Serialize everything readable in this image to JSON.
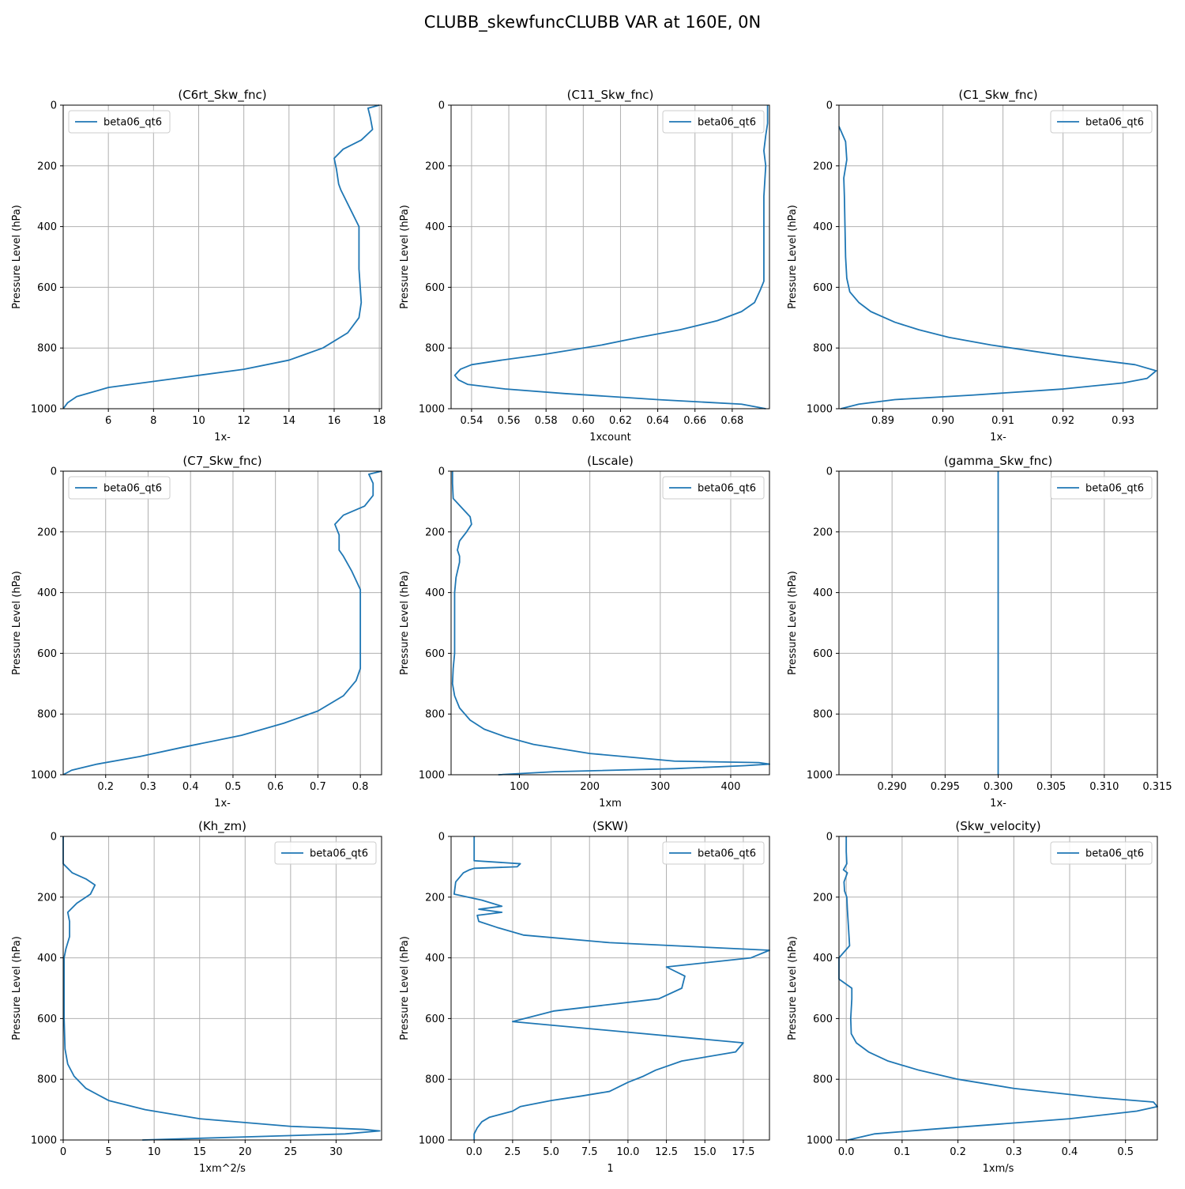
{
  "figure": {
    "title": "CLUBB_skewfuncCLUBB VAR at 160E, 0N"
  },
  "colors": {
    "line": "#1f77b4",
    "grid": "#b0b0b0"
  },
  "chart_data": [
    {
      "type": "line",
      "title": "(C6rt_Skw_fnc)",
      "xlabel": "1x-",
      "ylabel": "Pressure Level (hPa)",
      "xlim": [
        4.0,
        18.1
      ],
      "ylim": [
        1000,
        0
      ],
      "xticks": [
        6,
        8,
        10,
        12,
        14,
        16,
        18
      ],
      "xtick_labels": [
        "6",
        "8",
        "10",
        "12",
        "14",
        "16",
        "18"
      ],
      "yticks": [
        0,
        200,
        400,
        600,
        800,
        1000
      ],
      "ytick_labels": [
        "0",
        "200",
        "400",
        "600",
        "800",
        "1000"
      ],
      "legend": "upper left",
      "grid": true,
      "series": [
        {
          "name": "beta06_qt6",
          "x": [
            18.0,
            17.5,
            17.6,
            17.7,
            17.2,
            16.4,
            16.0,
            16.1,
            16.2,
            16.3,
            16.7,
            17.1,
            17.1,
            17.1,
            17.2,
            17.1,
            16.6,
            15.5,
            14.0,
            12.0,
            9.0,
            6.0,
            4.6,
            4.2,
            4.0
          ],
          "y": [
            0,
            10,
            40,
            80,
            115,
            145,
            175,
            210,
            260,
            280,
            340,
            400,
            460,
            540,
            650,
            700,
            750,
            800,
            840,
            870,
            900,
            930,
            960,
            980,
            1000
          ]
        }
      ]
    },
    {
      "type": "line",
      "title": "(C11_Skw_fnc)",
      "xlabel": "1xcount",
      "ylabel": "Pressure Level (hPa)",
      "xlim": [
        0.529,
        0.7
      ],
      "ylim": [
        1000,
        0
      ],
      "xticks": [
        0.54,
        0.56,
        0.58,
        0.6,
        0.62,
        0.64,
        0.66,
        0.68
      ],
      "xtick_labels": [
        "0.54",
        "0.56",
        "0.58",
        "0.60",
        "0.62",
        "0.64",
        "0.66",
        "0.68"
      ],
      "yticks": [
        0,
        200,
        400,
        600,
        800,
        1000
      ],
      "ytick_labels": [
        "0",
        "200",
        "400",
        "600",
        "800",
        "1000"
      ],
      "legend": "upper right",
      "grid": true,
      "series": [
        {
          "name": "beta06_qt6",
          "x": [
            0.699,
            0.699,
            0.698,
            0.697,
            0.698,
            0.697,
            0.697,
            0.697,
            0.697,
            0.695,
            0.692,
            0.685,
            0.672,
            0.652,
            0.63,
            0.61,
            0.58,
            0.556,
            0.54,
            0.534,
            0.531,
            0.533,
            0.538,
            0.558,
            0.59,
            0.64,
            0.685,
            0.698
          ],
          "y": [
            0,
            60,
            100,
            150,
            200,
            300,
            400,
            500,
            580,
            610,
            650,
            680,
            710,
            740,
            765,
            790,
            820,
            840,
            855,
            870,
            890,
            905,
            920,
            935,
            950,
            970,
            985,
            1000
          ]
        }
      ]
    },
    {
      "type": "line",
      "title": "(C1_Skw_fnc)",
      "xlabel": "1x-",
      "ylabel": "Pressure Level (hPa)",
      "xlim": [
        0.8827,
        0.9357
      ],
      "ylim": [
        1000,
        0
      ],
      "xticks": [
        0.89,
        0.9,
        0.91,
        0.92,
        0.93
      ],
      "xtick_labels": [
        "0.89",
        "0.90",
        "0.91",
        "0.92",
        "0.93"
      ],
      "yticks": [
        0,
        200,
        400,
        600,
        800,
        1000
      ],
      "ytick_labels": [
        "0",
        "200",
        "400",
        "600",
        "800",
        "1000"
      ],
      "legend": "upper right",
      "grid": true,
      "series": [
        {
          "name": "beta06_qt6",
          "x": [
            0.8827,
            0.8838,
            0.884,
            0.8835,
            0.8836,
            0.8837,
            0.8838,
            0.884,
            0.8845,
            0.886,
            0.888,
            0.892,
            0.896,
            0.901,
            0.908,
            0.92,
            0.932,
            0.9355,
            0.934,
            0.93,
            0.92,
            0.905,
            0.892,
            0.886,
            0.883
          ],
          "y": [
            70,
            120,
            180,
            240,
            300,
            400,
            500,
            570,
            615,
            650,
            680,
            715,
            740,
            765,
            790,
            825,
            855,
            875,
            900,
            915,
            935,
            955,
            970,
            985,
            1000
          ]
        }
      ]
    },
    {
      "type": "line",
      "title": "(C7_Skw_fnc)",
      "xlabel": "1x-",
      "ylabel": "Pressure Level (hPa)",
      "xlim": [
        0.1,
        0.85
      ],
      "ylim": [
        1000,
        0
      ],
      "xticks": [
        0.2,
        0.3,
        0.4,
        0.5,
        0.6,
        0.7,
        0.8
      ],
      "xtick_labels": [
        "0.2",
        "0.3",
        "0.4",
        "0.5",
        "0.6",
        "0.7",
        "0.8"
      ],
      "yticks": [
        0,
        200,
        400,
        600,
        800,
        1000
      ],
      "ytick_labels": [
        "0",
        "200",
        "400",
        "600",
        "800",
        "1000"
      ],
      "legend": "upper left",
      "grid": true,
      "series": [
        {
          "name": "beta06_qt6",
          "x": [
            0.85,
            0.82,
            0.83,
            0.83,
            0.81,
            0.76,
            0.74,
            0.75,
            0.75,
            0.76,
            0.78,
            0.8,
            0.8,
            0.8,
            0.8,
            0.79,
            0.76,
            0.7,
            0.62,
            0.52,
            0.38,
            0.28,
            0.18,
            0.12,
            0.1
          ],
          "y": [
            0,
            10,
            40,
            80,
            115,
            145,
            175,
            210,
            260,
            280,
            330,
            390,
            460,
            540,
            650,
            690,
            740,
            790,
            830,
            870,
            910,
            940,
            965,
            985,
            1000
          ]
        }
      ]
    },
    {
      "type": "line",
      "title": "(Lscale)",
      "xlabel": "1xm",
      "ylabel": "Pressure Level (hPa)",
      "xlim": [
        3,
        455
      ],
      "ylim": [
        1000,
        0
      ],
      "xticks": [
        100,
        200,
        300,
        400
      ],
      "xtick_labels": [
        "100",
        "200",
        "300",
        "400"
      ],
      "yticks": [
        0,
        200,
        400,
        600,
        800,
        1000
      ],
      "ytick_labels": [
        "0",
        "200",
        "400",
        "600",
        "800",
        "1000"
      ],
      "legend": "upper right",
      "grid": true,
      "series": [
        {
          "name": "beta06_qt6",
          "x": [
            5,
            5,
            6,
            18,
            30,
            32,
            25,
            15,
            12,
            15,
            15,
            10,
            8,
            8,
            8,
            6,
            5,
            8,
            15,
            30,
            50,
            80,
            120,
            200,
            320,
            440,
            455,
            420,
            320,
            150,
            70
          ],
          "y": [
            0,
            40,
            90,
            120,
            150,
            175,
            200,
            230,
            260,
            280,
            300,
            350,
            400,
            500,
            600,
            650,
            700,
            740,
            780,
            820,
            850,
            875,
            900,
            930,
            955,
            960,
            965,
            970,
            980,
            990,
            1000
          ]
        }
      ]
    },
    {
      "type": "line",
      "title": "(gamma_Skw_fnc)",
      "xlabel": "1x-",
      "ylabel": "Pressure Level (hPa)",
      "xlim": [
        0.285,
        0.315
      ],
      "ylim": [
        1000,
        0
      ],
      "xticks": [
        0.29,
        0.295,
        0.3,
        0.305,
        0.31,
        0.315
      ],
      "xtick_labels": [
        "0.290",
        "0.295",
        "0.300",
        "0.305",
        "0.310",
        "0.315"
      ],
      "yticks": [
        0,
        200,
        400,
        600,
        800,
        1000
      ],
      "ytick_labels": [
        "0",
        "200",
        "400",
        "600",
        "800",
        "1000"
      ],
      "legend": "upper right",
      "grid": true,
      "series": [
        {
          "name": "beta06_qt6",
          "x": [
            0.3,
            0.3
          ],
          "y": [
            0,
            1000
          ]
        }
      ]
    },
    {
      "type": "line",
      "title": "(Kh_zm)",
      "xlabel": "1xm^2/s",
      "ylabel": "Pressure Level (hPa)",
      "xlim": [
        0,
        35
      ],
      "ylim": [
        1000,
        0
      ],
      "xticks": [
        0,
        5,
        10,
        15,
        20,
        25,
        30
      ],
      "xtick_labels": [
        "0",
        "5",
        "10",
        "15",
        "20",
        "25",
        "30"
      ],
      "yticks": [
        0,
        200,
        400,
        600,
        800,
        1000
      ],
      "ytick_labels": [
        "0",
        "200",
        "400",
        "600",
        "800",
        "1000"
      ],
      "legend": "upper right",
      "grid": true,
      "series": [
        {
          "name": "beta06_qt6",
          "x": [
            0.0,
            0.0,
            1.0,
            2.5,
            3.5,
            3.0,
            1.5,
            0.5,
            0.7,
            0.7,
            0.3,
            0.1,
            0.1,
            0.1,
            0.2,
            0.5,
            1.2,
            2.5,
            5.0,
            9.0,
            15.0,
            25.0,
            33.0,
            34.8,
            31.0,
            20.0,
            8.7
          ],
          "y": [
            0,
            90,
            120,
            140,
            160,
            190,
            220,
            250,
            280,
            330,
            370,
            400,
            500,
            600,
            700,
            750,
            790,
            830,
            870,
            900,
            930,
            955,
            965,
            970,
            980,
            990,
            1000
          ]
        }
      ]
    },
    {
      "type": "line",
      "title": "(SKW)",
      "xlabel": "1",
      "ylabel": "Pressure Level (hPa)",
      "xlim": [
        -1.5,
        19.2
      ],
      "ylim": [
        1000,
        0
      ],
      "xticks": [
        0.0,
        2.5,
        5.0,
        7.5,
        10.0,
        12.5,
        15.0,
        17.5
      ],
      "xtick_labels": [
        "0.0",
        "2.5",
        "5.0",
        "7.5",
        "10.0",
        "12.5",
        "15.0",
        "17.5"
      ],
      "yticks": [
        0,
        200,
        400,
        600,
        800,
        1000
      ],
      "ytick_labels": [
        "0",
        "200",
        "400",
        "600",
        "800",
        "1000"
      ],
      "legend": "upper right",
      "grid": true,
      "series": [
        {
          "name": "beta06_qt6",
          "x": [
            0.0,
            0.0,
            0.0,
            3.0,
            2.8,
            0.0,
            -0.3,
            -0.7,
            -1.2,
            -1.3,
            0.5,
            1.8,
            0.3,
            1.8,
            0.2,
            0.3,
            1.5,
            3.2,
            8.8,
            19.2,
            18.0,
            12.5,
            13.7,
            13.5,
            12.0,
            5.2,
            2.5,
            17.5,
            17.0,
            13.5,
            11.8,
            11.0,
            10.0,
            8.8,
            7.0,
            5.0,
            3.0,
            2.5,
            1.0,
            0.5,
            0.2,
            0.0,
            0.0
          ],
          "y": [
            0,
            50,
            80,
            90,
            100,
            105,
            110,
            120,
            150,
            190,
            210,
            230,
            240,
            250,
            260,
            280,
            300,
            325,
            350,
            375,
            400,
            430,
            460,
            500,
            535,
            575,
            610,
            680,
            710,
            740,
            770,
            790,
            810,
            840,
            855,
            870,
            890,
            905,
            925,
            940,
            960,
            980,
            1000
          ]
        }
      ]
    },
    {
      "type": "line",
      "title": "(Skw_velocity)",
      "xlabel": "1xm/s",
      "ylabel": "Pressure Level (hPa)",
      "xlim": [
        -0.013,
        0.557
      ],
      "ylim": [
        1000,
        0
      ],
      "xticks": [
        0.0,
        0.1,
        0.2,
        0.3,
        0.4,
        0.5
      ],
      "xtick_labels": [
        "0.0",
        "0.1",
        "0.2",
        "0.3",
        "0.4",
        "0.5"
      ],
      "yticks": [
        0,
        200,
        400,
        600,
        800,
        1000
      ],
      "ytick_labels": [
        "0",
        "200",
        "400",
        "600",
        "800",
        "1000"
      ],
      "legend": "upper right",
      "grid": true,
      "series": [
        {
          "name": "beta06_qt6",
          "x": [
            0.0,
            0.0,
            0.001,
            -0.005,
            0.002,
            -0.004,
            -0.003,
            0.001,
            0.002,
            0.004,
            0.006,
            -0.013,
            -0.013,
            0.01,
            0.01,
            0.008,
            0.009,
            0.018,
            0.04,
            0.075,
            0.13,
            0.2,
            0.3,
            0.45,
            0.55,
            0.557,
            0.52,
            0.4,
            0.15,
            0.05,
            0.003
          ],
          "y": [
            0,
            50,
            90,
            110,
            120,
            150,
            180,
            200,
            240,
            300,
            360,
            400,
            470,
            500,
            535,
            600,
            650,
            680,
            710,
            740,
            770,
            800,
            830,
            860,
            875,
            890,
            905,
            930,
            965,
            980,
            1000
          ]
        }
      ]
    }
  ]
}
